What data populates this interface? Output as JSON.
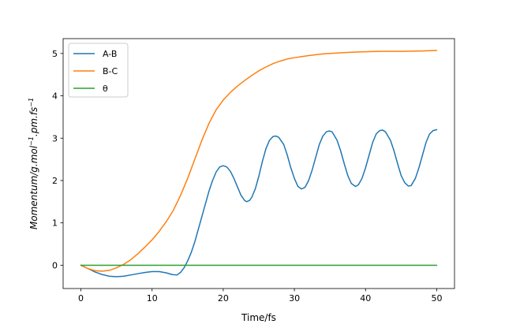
{
  "chart_data": {
    "type": "line",
    "xlabel": "Time/fs",
    "ylabel": "Momentum/g.mol",
    "ylabel_parts": [
      {
        "t": "Momentum/g.mol",
        "sup": false
      },
      {
        "t": "−1",
        "sup": true
      },
      {
        "t": ".pm.fs",
        "sup": false
      },
      {
        "t": "−1",
        "sup": true
      }
    ],
    "xlim": [
      -2.5,
      52.5
    ],
    "ylim": [
      -0.55,
      5.35
    ],
    "xticks": [
      0,
      10,
      20,
      30,
      40,
      50
    ],
    "yticks": [
      0,
      1,
      2,
      3,
      4,
      5
    ],
    "grid": false,
    "legend_position": "top-left",
    "series": [
      {
        "name": "A-B",
        "color": "#1f77b4",
        "points": [
          [
            0,
            0.0
          ],
          [
            1,
            -0.08
          ],
          [
            2,
            -0.16
          ],
          [
            3,
            -0.22
          ],
          [
            4,
            -0.26
          ],
          [
            5,
            -0.27
          ],
          [
            6,
            -0.26
          ],
          [
            7,
            -0.23
          ],
          [
            8,
            -0.2
          ],
          [
            9,
            -0.17
          ],
          [
            10,
            -0.15
          ],
          [
            11,
            -0.15
          ],
          [
            12,
            -0.18
          ],
          [
            12.8,
            -0.22
          ],
          [
            13.5,
            -0.23
          ],
          [
            14,
            -0.17
          ],
          [
            14.5,
            -0.06
          ],
          [
            15,
            0.1
          ],
          [
            15.5,
            0.3
          ],
          [
            16,
            0.55
          ],
          [
            16.5,
            0.85
          ],
          [
            17,
            1.15
          ],
          [
            17.5,
            1.45
          ],
          [
            18,
            1.75
          ],
          [
            18.5,
            2.0
          ],
          [
            19,
            2.2
          ],
          [
            19.5,
            2.32
          ],
          [
            20,
            2.35
          ],
          [
            20.5,
            2.32
          ],
          [
            21,
            2.22
          ],
          [
            21.5,
            2.05
          ],
          [
            22,
            1.85
          ],
          [
            22.5,
            1.65
          ],
          [
            23,
            1.53
          ],
          [
            23.3,
            1.5
          ],
          [
            23.7,
            1.53
          ],
          [
            24,
            1.6
          ],
          [
            24.5,
            1.8
          ],
          [
            25,
            2.1
          ],
          [
            25.5,
            2.45
          ],
          [
            26,
            2.75
          ],
          [
            26.5,
            2.95
          ],
          [
            27,
            3.04
          ],
          [
            27.4,
            3.05
          ],
          [
            27.8,
            3.02
          ],
          [
            28.5,
            2.85
          ],
          [
            29,
            2.6
          ],
          [
            29.5,
            2.3
          ],
          [
            30,
            2.05
          ],
          [
            30.5,
            1.86
          ],
          [
            31,
            1.8
          ],
          [
            31.5,
            1.84
          ],
          [
            32,
            2.0
          ],
          [
            32.5,
            2.25
          ],
          [
            33,
            2.55
          ],
          [
            33.5,
            2.85
          ],
          [
            34,
            3.05
          ],
          [
            34.5,
            3.15
          ],
          [
            34.9,
            3.17
          ],
          [
            35.3,
            3.15
          ],
          [
            36,
            2.95
          ],
          [
            36.5,
            2.7
          ],
          [
            37,
            2.4
          ],
          [
            37.5,
            2.12
          ],
          [
            38,
            1.93
          ],
          [
            38.6,
            1.86
          ],
          [
            39,
            1.9
          ],
          [
            39.5,
            2.05
          ],
          [
            40,
            2.3
          ],
          [
            40.5,
            2.6
          ],
          [
            41,
            2.9
          ],
          [
            41.5,
            3.1
          ],
          [
            42,
            3.18
          ],
          [
            42.4,
            3.19
          ],
          [
            42.8,
            3.15
          ],
          [
            43.5,
            2.95
          ],
          [
            44,
            2.7
          ],
          [
            44.5,
            2.4
          ],
          [
            45,
            2.12
          ],
          [
            45.5,
            1.95
          ],
          [
            46,
            1.87
          ],
          [
            46.4,
            1.88
          ],
          [
            47,
            2.05
          ],
          [
            47.5,
            2.3
          ],
          [
            48,
            2.6
          ],
          [
            48.5,
            2.9
          ],
          [
            49,
            3.1
          ],
          [
            49.5,
            3.18
          ],
          [
            50,
            3.2
          ]
        ]
      },
      {
        "name": "B-C",
        "color": "#ff7f0e",
        "points": [
          [
            0,
            0.0
          ],
          [
            1,
            -0.08
          ],
          [
            2,
            -0.13
          ],
          [
            3,
            -0.14
          ],
          [
            4,
            -0.12
          ],
          [
            5,
            -0.06
          ],
          [
            6,
            0.02
          ],
          [
            7,
            0.13
          ],
          [
            8,
            0.27
          ],
          [
            9,
            0.43
          ],
          [
            10,
            0.6
          ],
          [
            11,
            0.8
          ],
          [
            12,
            1.03
          ],
          [
            13,
            1.3
          ],
          [
            14,
            1.65
          ],
          [
            15,
            2.05
          ],
          [
            16,
            2.5
          ],
          [
            17,
            2.95
          ],
          [
            18,
            3.35
          ],
          [
            19,
            3.67
          ],
          [
            20,
            3.9
          ],
          [
            21,
            4.08
          ],
          [
            22,
            4.23
          ],
          [
            23,
            4.36
          ],
          [
            24,
            4.48
          ],
          [
            25,
            4.59
          ],
          [
            26,
            4.68
          ],
          [
            27,
            4.76
          ],
          [
            28,
            4.82
          ],
          [
            29,
            4.87
          ],
          [
            30,
            4.9
          ],
          [
            32,
            4.95
          ],
          [
            34,
            4.99
          ],
          [
            36,
            5.01
          ],
          [
            38,
            5.03
          ],
          [
            40,
            5.04
          ],
          [
            42,
            5.05
          ],
          [
            45,
            5.05
          ],
          [
            48,
            5.06
          ],
          [
            50,
            5.07
          ]
        ]
      },
      {
        "name": "θ",
        "color": "#2ca02c",
        "points": [
          [
            0,
            0.0
          ],
          [
            50,
            0.0
          ]
        ]
      }
    ]
  }
}
